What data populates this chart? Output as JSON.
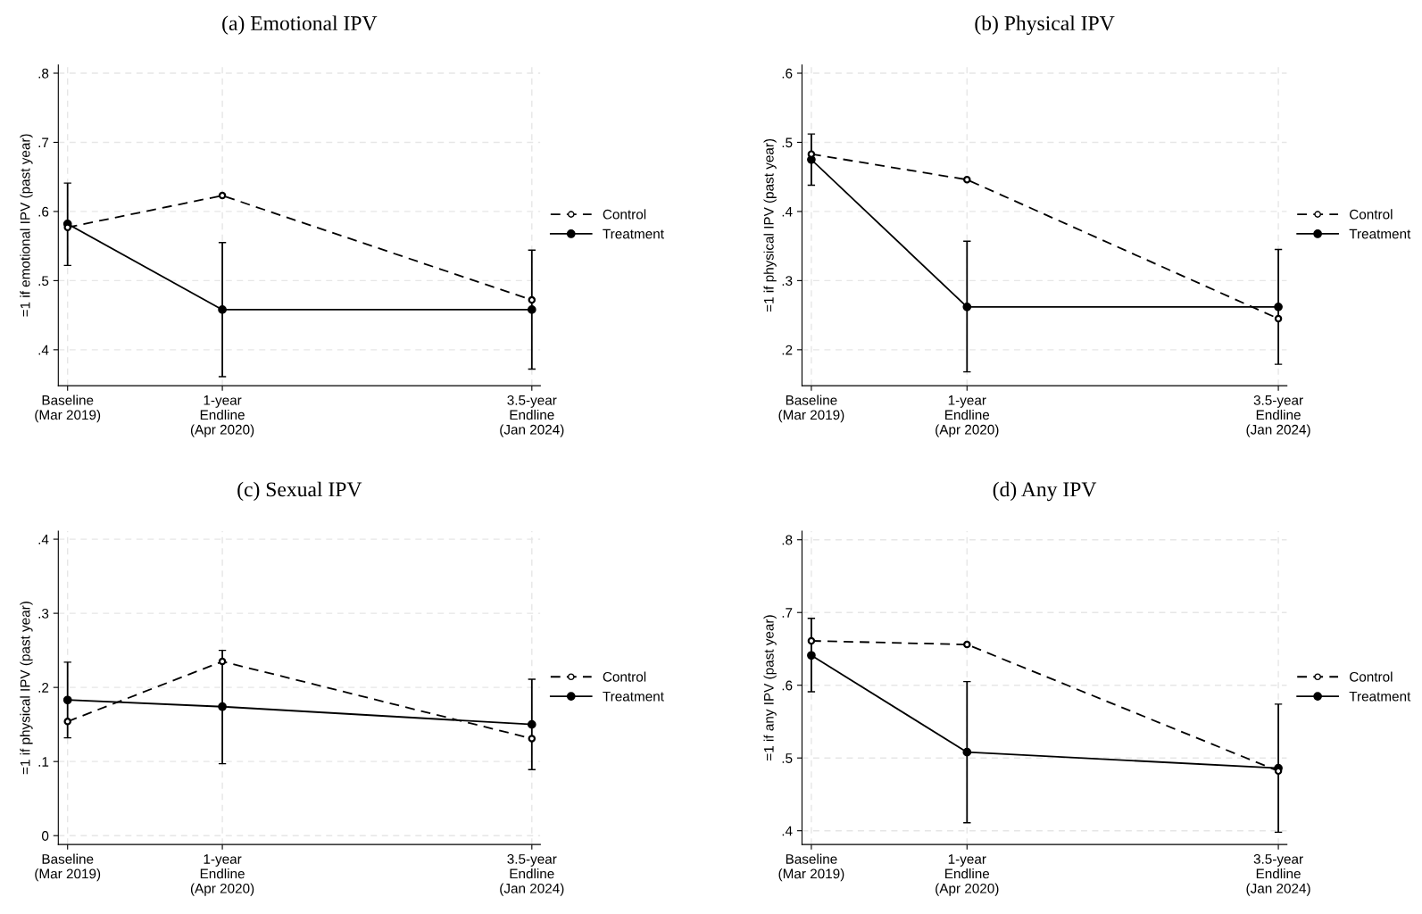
{
  "chart_data": [
    {
      "type": "line",
      "title": "(a) Emotional IPV",
      "ylabel": "=1 if emotional IPV (past year)",
      "categories": [
        "Baseline\n(Mar 2019)",
        "1-year\nEndline\n(Apr 2020)",
        null,
        "3.5-year\nEndline\n(Jan 2024)"
      ],
      "ylim": [
        0.348,
        0.812
      ],
      "yticks": [
        {
          "value": 0.4,
          "label": ".4"
        },
        {
          "value": 0.5,
          "label": ".5"
        },
        {
          "value": 0.6,
          "label": ".6"
        },
        {
          "value": 0.7,
          "label": ".7"
        },
        {
          "value": 0.8,
          "label": ".8"
        }
      ],
      "grid": true,
      "legend": "right",
      "marker": "circle",
      "series": [
        {
          "name": "Control",
          "color": "#000000",
          "line_style": "dashed",
          "values": [
            0.577,
            0.623,
            null,
            0.472
          ]
        },
        {
          "name": "Treatment",
          "color": "#000000",
          "line_style": "solid",
          "values": [
            0.582,
            0.458,
            null,
            0.458
          ],
          "errors": [
            [
              0.522,
              0.641
            ],
            [
              0.361,
              0.555
            ],
            null,
            [
              0.372,
              0.544
            ]
          ]
        }
      ]
    },
    {
      "type": "line",
      "title": "(b) Physical IPV",
      "ylabel": "=1 if physical IPV (past year)",
      "categories": [
        "Baseline\n(Mar 2019)",
        "1-year\nEndline\n(Apr 2020)",
        null,
        "3.5-year\nEndline\n(Jan 2024)"
      ],
      "ylim": [
        0.148,
        0.612
      ],
      "yticks": [
        {
          "value": 0.2,
          "label": ".2"
        },
        {
          "value": 0.3,
          "label": ".3"
        },
        {
          "value": 0.4,
          "label": ".4"
        },
        {
          "value": 0.5,
          "label": ".5"
        },
        {
          "value": 0.6,
          "label": ".6"
        }
      ],
      "grid": true,
      "legend": "right",
      "marker": "circle",
      "series": [
        {
          "name": "Control",
          "color": "#000000",
          "line_style": "dashed",
          "values": [
            0.483,
            0.446,
            null,
            0.245
          ]
        },
        {
          "name": "Treatment",
          "color": "#000000",
          "line_style": "solid",
          "values": [
            0.475,
            0.262,
            null,
            0.262
          ],
          "errors": [
            [
              0.438,
              0.512
            ],
            [
              0.168,
              0.357
            ],
            null,
            [
              0.179,
              0.345
            ]
          ]
        }
      ]
    },
    {
      "type": "line",
      "title": "(c) Sexual IPV",
      "ylabel": "=1 if physical IPV (past year)",
      "categories": [
        "Baseline\n(Mar 2019)",
        "1-year\nEndline\n(Apr 2020)",
        null,
        "3.5-year\nEndline\n(Jan 2024)"
      ],
      "ylim": [
        -0.012,
        0.411
      ],
      "yticks": [
        0,
        {
          "value": 0.1,
          "label": ".1"
        },
        {
          "value": 0.2,
          "label": ".2"
        },
        {
          "value": 0.3,
          "label": ".3"
        },
        {
          "value": 0.4,
          "label": ".4"
        }
      ],
      "grid": true,
      "legend": "right",
      "marker": "circle",
      "series": [
        {
          "name": "Control",
          "color": "#000000",
          "line_style": "dashed",
          "values": [
            0.154,
            0.235,
            null,
            0.131
          ]
        },
        {
          "name": "Treatment",
          "color": "#000000",
          "line_style": "solid",
          "values": [
            0.183,
            0.174,
            null,
            0.15
          ],
          "errors": [
            [
              0.132,
              0.234
            ],
            [
              0.097,
              0.25
            ],
            null,
            [
              0.089,
              0.211
            ]
          ]
        }
      ]
    },
    {
      "type": "line",
      "title": "(d) Any IPV",
      "ylabel": "=1 if any IPV (past year)",
      "categories": [
        "Baseline\n(Mar 2019)",
        "1-year\nEndline\n(Apr 2020)",
        null,
        "3.5-year\nEndline\n(Jan 2024)"
      ],
      "ylim": [
        0.381,
        0.812
      ],
      "yticks": [
        {
          "value": 0.4,
          "label": ".4"
        },
        {
          "value": 0.5,
          "label": ".5"
        },
        {
          "value": 0.6,
          "label": ".6"
        },
        {
          "value": 0.7,
          "label": ".7"
        },
        {
          "value": 0.8,
          "label": ".8"
        }
      ],
      "grid": true,
      "legend": "right",
      "marker": "circle",
      "series": [
        {
          "name": "Control",
          "color": "#000000",
          "line_style": "dashed",
          "values": [
            0.661,
            0.656,
            null,
            0.482
          ]
        },
        {
          "name": "Treatment",
          "color": "#000000",
          "line_style": "solid",
          "values": [
            0.641,
            0.508,
            null,
            0.486
          ],
          "errors": [
            [
              0.591,
              0.692
            ],
            [
              0.411,
              0.605
            ],
            null,
            [
              0.398,
              0.574
            ]
          ]
        }
      ]
    }
  ]
}
